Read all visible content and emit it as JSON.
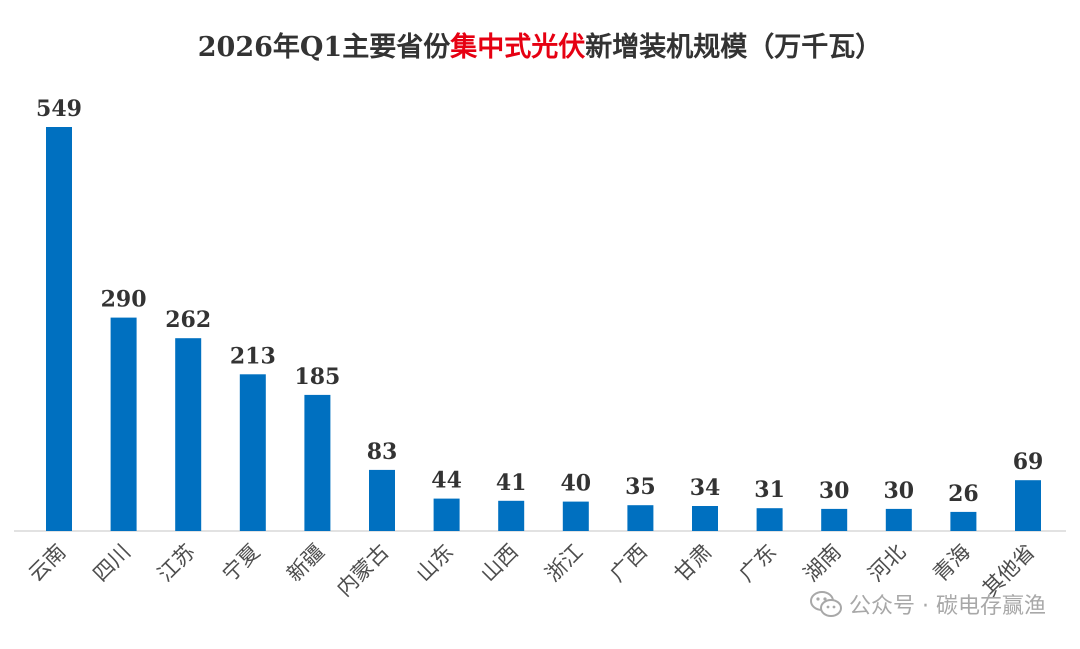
{
  "chart_data": {
    "type": "bar",
    "title": {
      "prefix": "2026年Q1主要省份",
      "highlight": "集中式光伏",
      "suffix": "新增装机规模（万千瓦）"
    },
    "categories": [
      "云南",
      "四川",
      "江苏",
      "宁夏",
      "新疆",
      "内蒙古",
      "山东",
      "山西",
      "浙江",
      "广西",
      "甘肃",
      "广东",
      "湖南",
      "河北",
      "青海",
      "其他省"
    ],
    "values": [
      549,
      290,
      262,
      213,
      185,
      83,
      44,
      41,
      40,
      35,
      34,
      31,
      30,
      30,
      26,
      69
    ],
    "ylim": [
      0,
      549
    ],
    "grid": false,
    "legend": "none",
    "bar_color": "#0070c0",
    "highlight_color": "#e60012"
  },
  "watermark": {
    "text": "公众号 · 碳电存赢渔",
    "icon": "wechat-icon"
  }
}
